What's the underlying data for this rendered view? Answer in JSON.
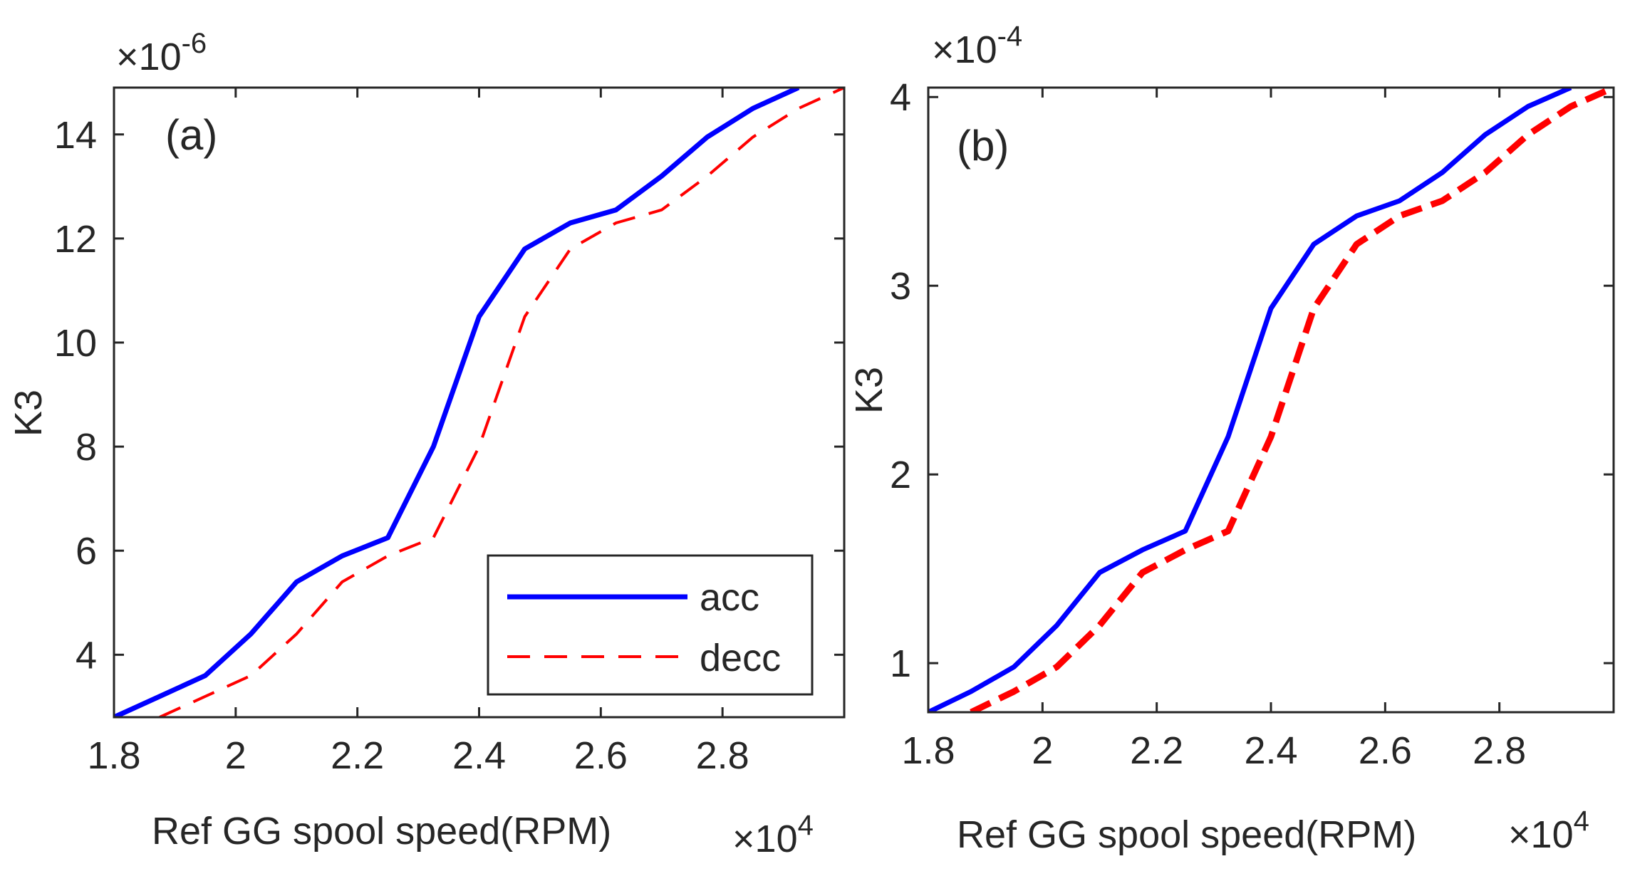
{
  "chart_data": [
    {
      "type": "line",
      "panel_label": "(a)",
      "xlabel": "Ref GG spool speed(RPM)",
      "ylabel": "K3",
      "x_multiplier": {
        "base": "×10",
        "exp": "4"
      },
      "y_multiplier": {
        "base": "×10",
        "exp": "-6"
      },
      "xlim": [
        1.8,
        3.0
      ],
      "ylim": [
        2.8,
        14.9
      ],
      "xticks": [
        1.8,
        2.0,
        2.2,
        2.4,
        2.6,
        2.8
      ],
      "xtick_labels": [
        "1.8",
        "2",
        "2.2",
        "2.4",
        "2.6",
        "2.8"
      ],
      "yticks": [
        4,
        6,
        8,
        10,
        12,
        14
      ],
      "ytick_labels": [
        "4",
        "6",
        "8",
        "10",
        "12",
        "14"
      ],
      "legend": {
        "position": "bottom-right",
        "entries": [
          "acc",
          "decc"
        ]
      },
      "series": [
        {
          "name": "acc",
          "color": "#0000ff",
          "style": "solid",
          "x": [
            1.8,
            1.875,
            1.95,
            2.025,
            2.1,
            2.175,
            2.25,
            2.325,
            2.4,
            2.475,
            2.55,
            2.625,
            2.7,
            2.775,
            2.85,
            2.925
          ],
          "y": [
            2.8,
            3.2,
            3.6,
            4.4,
            5.4,
            5.9,
            6.25,
            8.0,
            10.5,
            11.8,
            12.3,
            12.55,
            13.2,
            13.95,
            14.5,
            14.9
          ]
        },
        {
          "name": "decc",
          "color": "#ff0000",
          "style": "dashed",
          "x": [
            1.875,
            1.95,
            2.025,
            2.1,
            2.175,
            2.25,
            2.325,
            2.4,
            2.475,
            2.55,
            2.625,
            2.7,
            2.775,
            2.85,
            2.925,
            3.0
          ],
          "y": [
            2.8,
            3.2,
            3.6,
            4.4,
            5.4,
            5.9,
            6.25,
            8.0,
            10.5,
            11.8,
            12.3,
            12.55,
            13.2,
            13.95,
            14.5,
            14.9
          ]
        }
      ]
    },
    {
      "type": "line",
      "panel_label": "(b)",
      "xlabel": "Ref GG spool speed(RPM)",
      "ylabel": "K3",
      "x_multiplier": {
        "base": "×10",
        "exp": "4"
      },
      "y_multiplier": {
        "base": "×10",
        "exp": "-4"
      },
      "xlim": [
        1.8,
        3.0
      ],
      "ylim": [
        0.74,
        4.05
      ],
      "xticks": [
        1.8,
        2.0,
        2.2,
        2.4,
        2.6,
        2.8
      ],
      "xtick_labels": [
        "1.8",
        "2",
        "2.2",
        "2.4",
        "2.6",
        "2.8"
      ],
      "yticks": [
        1,
        2,
        3,
        4
      ],
      "ytick_labels": [
        "1",
        "2",
        "3",
        "4"
      ],
      "series": [
        {
          "name": "acc",
          "color": "#0000ff",
          "style": "solid",
          "x": [
            1.8,
            1.875,
            1.95,
            2.025,
            2.1,
            2.175,
            2.25,
            2.325,
            2.4,
            2.475,
            2.55,
            2.625,
            2.7,
            2.775,
            2.85,
            2.925
          ],
          "y": [
            0.74,
            0.85,
            0.98,
            1.2,
            1.48,
            1.6,
            1.7,
            2.2,
            2.88,
            3.22,
            3.37,
            3.45,
            3.6,
            3.8,
            3.95,
            4.05
          ]
        },
        {
          "name": "decc",
          "color": "#ff0000",
          "style": "dashed",
          "x": [
            1.875,
            1.95,
            2.025,
            2.1,
            2.175,
            2.25,
            2.325,
            2.4,
            2.475,
            2.55,
            2.625,
            2.7,
            2.775,
            2.85,
            2.925,
            3.0
          ],
          "y": [
            0.74,
            0.85,
            0.98,
            1.2,
            1.48,
            1.6,
            1.7,
            2.2,
            2.88,
            3.22,
            3.37,
            3.45,
            3.6,
            3.8,
            3.95,
            4.05
          ]
        }
      ]
    }
  ]
}
